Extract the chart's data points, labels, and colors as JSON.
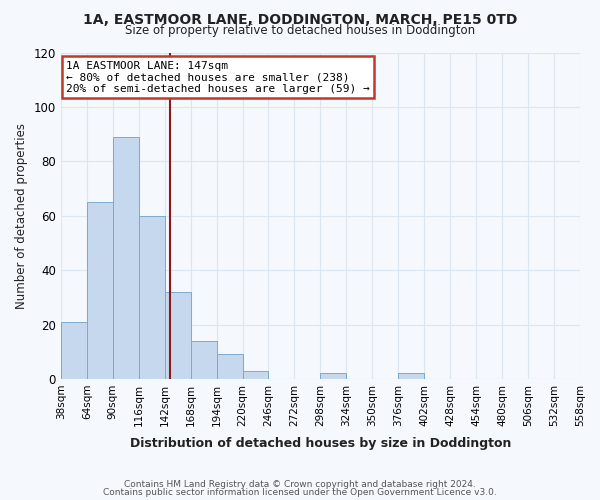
{
  "title": "1A, EASTMOOR LANE, DODDINGTON, MARCH, PE15 0TD",
  "subtitle": "Size of property relative to detached houses in Doddington",
  "xlabel": "Distribution of detached houses by size in Doddington",
  "ylabel": "Number of detached properties",
  "bin_edges": [
    38,
    64,
    90,
    116,
    142,
    168,
    194,
    220,
    246,
    272,
    298,
    324,
    350,
    376,
    402,
    428,
    454,
    480,
    506,
    532,
    558
  ],
  "bar_heights": [
    21,
    65,
    89,
    60,
    32,
    14,
    9,
    3,
    0,
    0,
    2,
    0,
    0,
    2,
    0,
    0,
    0,
    0,
    0,
    0
  ],
  "bar_color": "#c5d8ed",
  "bar_edge_color": "#7aabcc",
  "vline_x": 147,
  "vline_color": "#8b1a1a",
  "ylim": [
    0,
    120
  ],
  "yticks": [
    0,
    20,
    40,
    60,
    80,
    100,
    120
  ],
  "annotation_line1": "1A EASTMOOR LANE: 147sqm",
  "annotation_line2": "← 80% of detached houses are smaller (238)",
  "annotation_line3": "20% of semi-detached houses are larger (59) →",
  "annotation_box_color": "#ffffff",
  "annotation_box_edge": "#c0392b",
  "footer_line1": "Contains HM Land Registry data © Crown copyright and database right 2024.",
  "footer_line2": "Contains public sector information licensed under the Open Government Licence v3.0.",
  "background_color": "#f5f8fd",
  "grid_color": "#dce6f0",
  "title_color": "#222222",
  "axis_label_color": "#222222"
}
